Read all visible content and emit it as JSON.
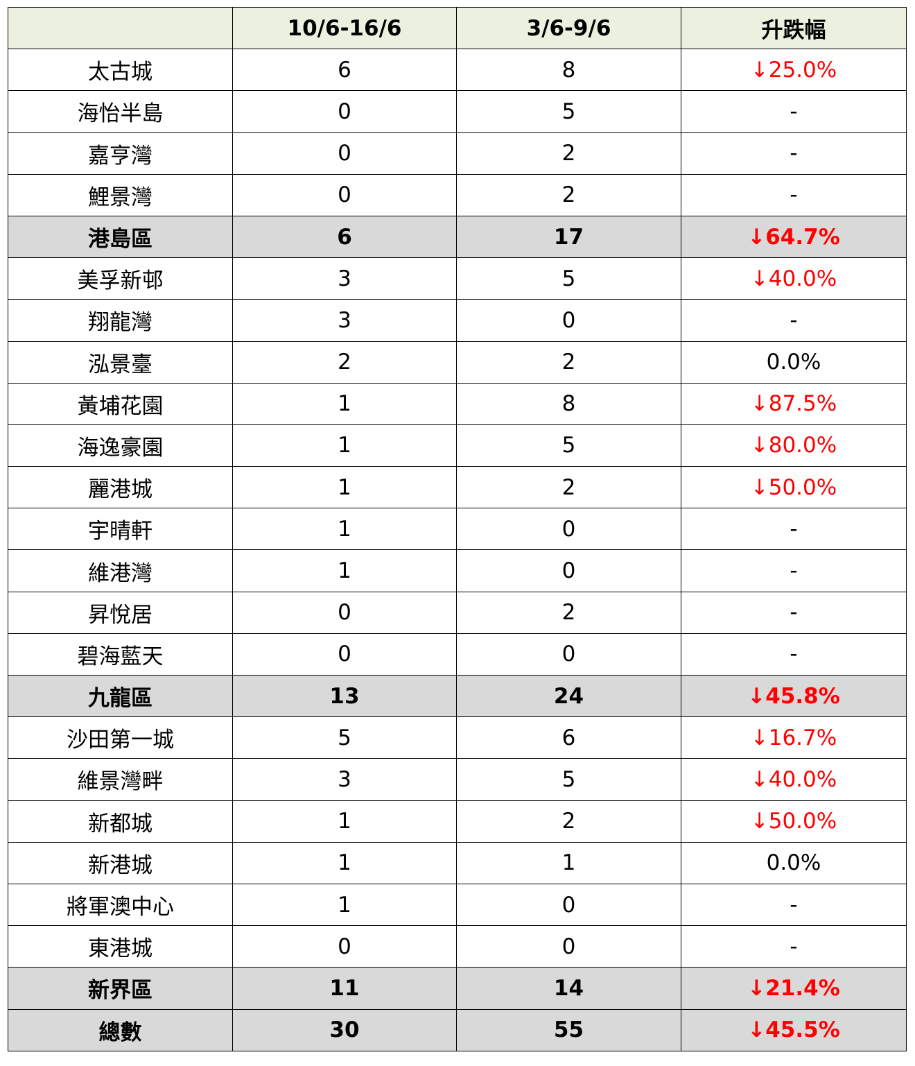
{
  "table": {
    "header": [
      "10/6-16/6",
      "3/6-9/6",
      "升跌幅"
    ],
    "rows": [
      {
        "cells": [
          "太古城",
          6,
          8,
          "↓25.0%"
        ]
      },
      {
        "cells": [
          "海怡半島",
          0,
          5,
          "-"
        ]
      },
      {
        "cells": [
          "嘉亨灣",
          0,
          2,
          "-"
        ]
      },
      {
        "cells": [
          "鯉景灣",
          0,
          2,
          "-"
        ]
      },
      {
        "cells": [
          "港島區",
          6,
          17,
          "↓64.7%"
        ],
        "subtotal": true
      },
      {
        "cells": [
          "美孚新邨",
          3,
          5,
          "↓40.0%"
        ]
      },
      {
        "cells": [
          "翔龍灣",
          3,
          0,
          "-"
        ]
      },
      {
        "cells": [
          "泓景臺",
          2,
          2,
          "0.0%"
        ]
      },
      {
        "cells": [
          "黃埔花園",
          1,
          8,
          "↓87.5%"
        ]
      },
      {
        "cells": [
          "海逸豪園",
          1,
          5,
          "↓80.0%"
        ]
      },
      {
        "cells": [
          "麗港城",
          1,
          2,
          "↓50.0%"
        ]
      },
      {
        "cells": [
          "宇晴軒",
          1,
          0,
          "-"
        ]
      },
      {
        "cells": [
          "維港灣",
          1,
          0,
          "-"
        ]
      },
      {
        "cells": [
          "昇悅居",
          0,
          2,
          "-"
        ]
      },
      {
        "cells": [
          "碧海藍天",
          0,
          0,
          "-"
        ]
      },
      {
        "cells": [
          "九龍區",
          13,
          24,
          "↓45.8%"
        ],
        "subtotal": true
      },
      {
        "cells": [
          "沙田第一城",
          5,
          6,
          "↓16.7%"
        ]
      },
      {
        "cells": [
          "維景灣畔",
          3,
          5,
          "↓40.0%"
        ]
      },
      {
        "cells": [
          "新都城",
          1,
          2,
          "↓50.0%"
        ]
      },
      {
        "cells": [
          "新港城",
          1,
          1,
          "0.0%"
        ]
      },
      {
        "cells": [
          "將軍澳中心",
          1,
          0,
          "-"
        ]
      },
      {
        "cells": [
          "東港城",
          0,
          0,
          "-"
        ]
      },
      {
        "cells": [
          "新界區",
          11,
          14,
          "↓21.4%"
        ],
        "subtotal": true
      },
      {
        "cells": [
          "總數",
          30,
          55,
          "↓45.5%"
        ],
        "subtotal": true
      }
    ],
    "header_color": "#ebf1de",
    "subtotal_color": "#d9d9d9",
    "drop_color": "#ff0000"
  }
}
